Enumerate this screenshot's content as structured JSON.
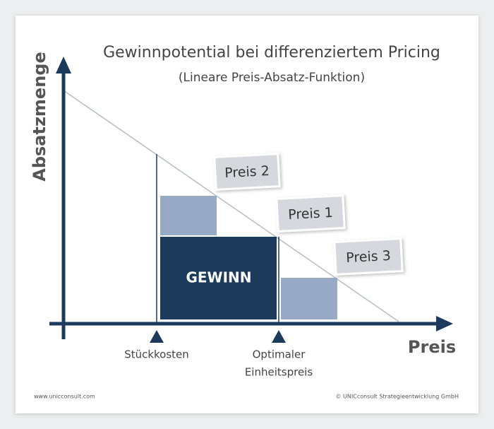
{
  "title": "Gewinnpotential bei differenziertem Pricing",
  "subtitle": "(Lineare Preis-Absatz-Funktion)",
  "y_axis_label": "Absatzmenge",
  "x_axis_label": "Preis",
  "price_labels": [
    "Preis 2",
    "Preis 1",
    "Preis 3"
  ],
  "profit_label": "GEWINN",
  "markers": {
    "unit_cost": "Stückkosten",
    "optimal_price": [
      "Optimaler",
      "Einheitspreis"
    ]
  },
  "footer": {
    "left": "www.unicconsult.com",
    "right": "© UNICconsult Strategieentwicklung GmbH"
  }
}
